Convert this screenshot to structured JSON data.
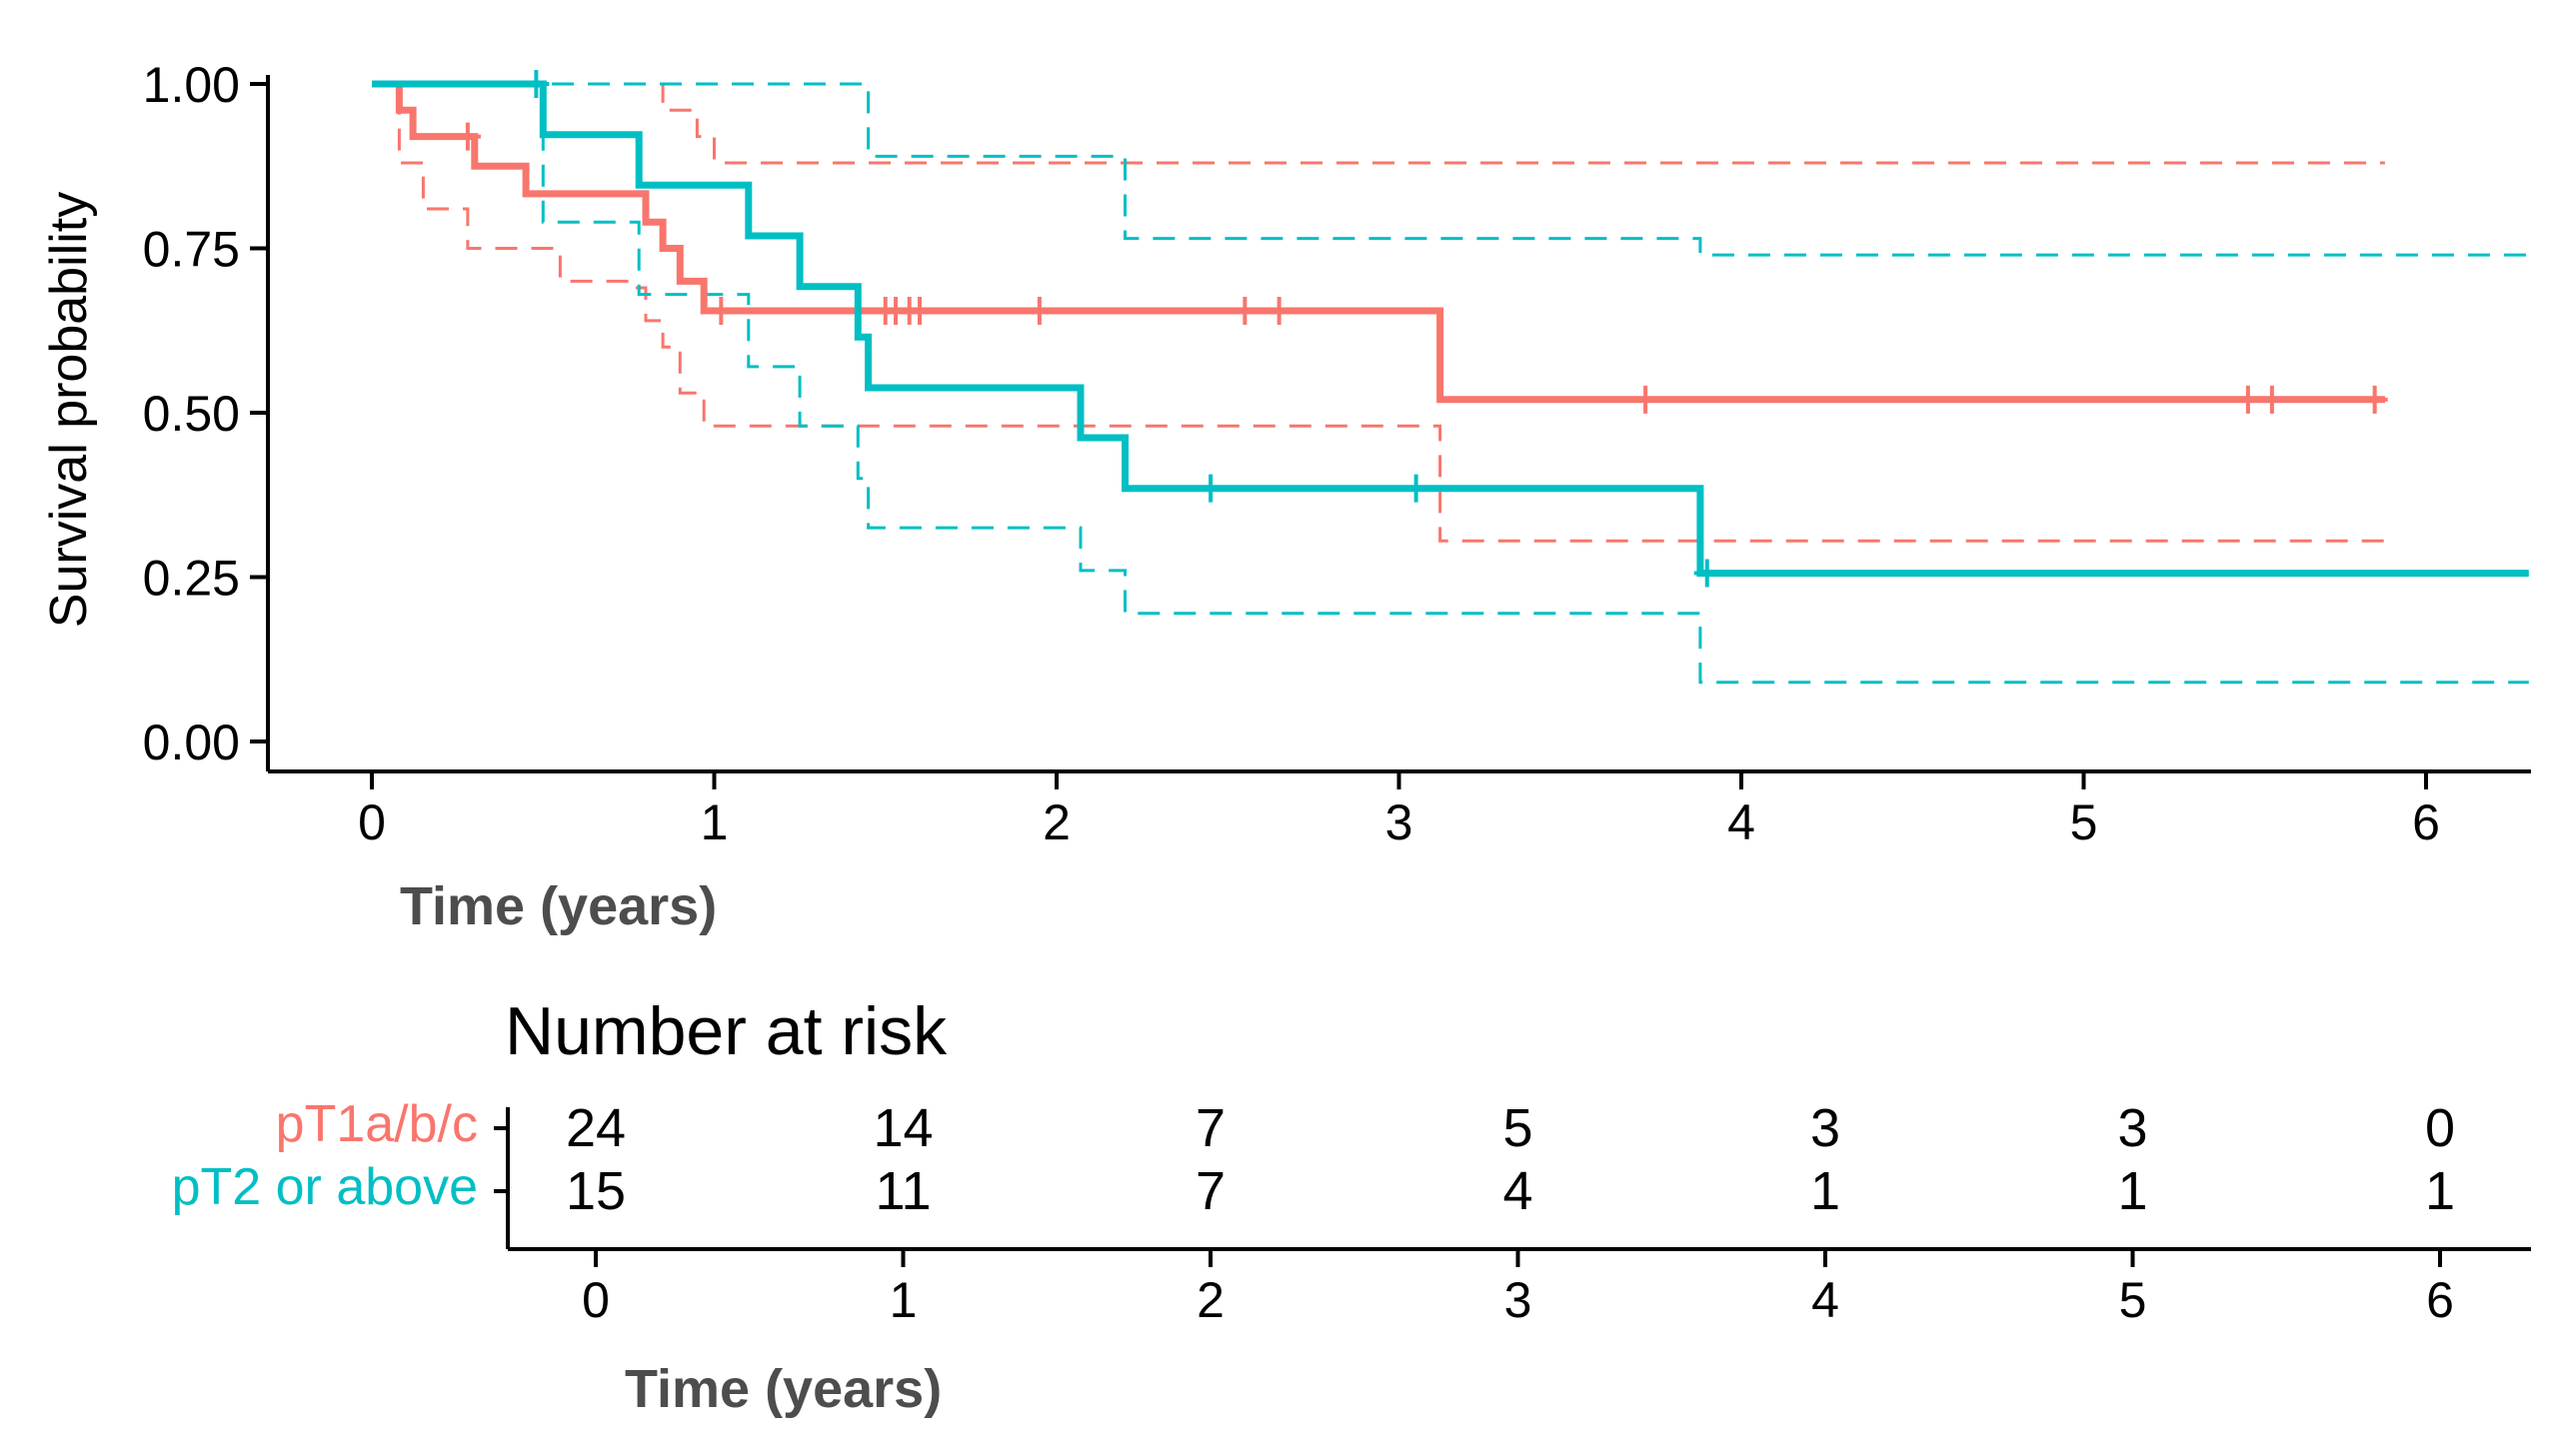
{
  "chart_data": {
    "type": "line",
    "subtype": "kaplan-meier",
    "ylabel": "Survival probability",
    "xlabel": "Time (years)",
    "xlim": [
      -0.3,
      6.3
    ],
    "ylim": [
      0,
      1
    ],
    "x_ticks": [
      0,
      1,
      2,
      3,
      4,
      5,
      6
    ],
    "x_tick_labels": [
      "0",
      "1",
      "2",
      "3",
      "4",
      "5",
      "6"
    ],
    "y_ticks": [
      0,
      0.25,
      0.5,
      0.75,
      1
    ],
    "y_tick_labels": [
      "0.00",
      "0.25",
      "0.50",
      "0.75",
      "1.00"
    ],
    "grid": false,
    "series": [
      {
        "name": "pT1a/b/c",
        "color": "#F8766D",
        "steps": [
          [
            0,
            1.0
          ],
          [
            0.08,
            0.96
          ],
          [
            0.12,
            0.92
          ],
          [
            0.3,
            0.875
          ],
          [
            0.45,
            0.833
          ],
          [
            0.8,
            0.79
          ],
          [
            0.85,
            0.75
          ],
          [
            0.9,
            0.7
          ],
          [
            0.97,
            0.655
          ],
          [
            3.12,
            0.52
          ],
          [
            5.88,
            0.52
          ]
        ],
        "censored": [
          [
            0.28,
            0.92
          ],
          [
            1.02,
            0.655
          ],
          [
            1.5,
            0.655
          ],
          [
            1.53,
            0.655
          ],
          [
            1.57,
            0.655
          ],
          [
            1.6,
            0.655
          ],
          [
            1.95,
            0.655
          ],
          [
            2.55,
            0.655
          ],
          [
            2.65,
            0.655
          ],
          [
            3.72,
            0.52
          ],
          [
            5.48,
            0.52
          ],
          [
            5.55,
            0.52
          ],
          [
            5.85,
            0.52
          ]
        ],
        "ci_lower": [
          [
            0,
            1.0
          ],
          [
            0.08,
            0.88
          ],
          [
            0.15,
            0.81
          ],
          [
            0.28,
            0.75
          ],
          [
            0.55,
            0.7
          ],
          [
            0.75,
            0.69
          ],
          [
            0.8,
            0.64
          ],
          [
            0.85,
            0.6
          ],
          [
            0.9,
            0.53
          ],
          [
            0.97,
            0.48
          ],
          [
            3.12,
            0.305
          ],
          [
            5.88,
            0.305
          ]
        ],
        "ci_upper": [
          [
            0,
            1.0
          ],
          [
            0.8,
            1.0
          ],
          [
            0.85,
            0.96
          ],
          [
            0.95,
            0.92
          ],
          [
            1.0,
            0.88
          ],
          [
            5.88,
            0.88
          ]
        ]
      },
      {
        "name": "pT2 or above",
        "color": "#00BFC4",
        "steps": [
          [
            0,
            1.0
          ],
          [
            0.5,
            0.923
          ],
          [
            0.78,
            0.846
          ],
          [
            1.1,
            0.769
          ],
          [
            1.25,
            0.692
          ],
          [
            1.42,
            0.615
          ],
          [
            1.45,
            0.538
          ],
          [
            2.07,
            0.462
          ],
          [
            2.2,
            0.385
          ],
          [
            3.88,
            0.256
          ],
          [
            6.3,
            0.256
          ]
        ],
        "censored": [
          [
            0.48,
            1.0
          ],
          [
            2.45,
            0.385
          ],
          [
            3.05,
            0.385
          ],
          [
            3.9,
            0.256
          ]
        ],
        "ci_lower": [
          [
            0,
            1.0
          ],
          [
            0.5,
            0.79
          ],
          [
            0.78,
            0.68
          ],
          [
            1.1,
            0.57
          ],
          [
            1.25,
            0.48
          ],
          [
            1.42,
            0.4
          ],
          [
            1.45,
            0.325
          ],
          [
            2.07,
            0.26
          ],
          [
            2.2,
            0.195
          ],
          [
            3.88,
            0.09
          ],
          [
            6.3,
            0.09
          ]
        ],
        "ci_upper": [
          [
            0,
            1.0
          ],
          [
            1.42,
            1.0
          ],
          [
            1.45,
            0.89
          ],
          [
            2.07,
            0.89
          ],
          [
            2.2,
            0.765
          ],
          [
            3.88,
            0.74
          ],
          [
            6.3,
            0.74
          ]
        ]
      }
    ],
    "risk_table": {
      "title": "Number at risk",
      "xlabel": "Time (years)",
      "times": [
        0,
        1,
        2,
        3,
        4,
        5,
        6
      ],
      "time_labels": [
        "0",
        "1",
        "2",
        "3",
        "4",
        "5",
        "6"
      ],
      "rows": [
        {
          "label": "pT1a/b/c",
          "color": "#F8766D",
          "values": [
            "24",
            "14",
            "7",
            "5",
            "3",
            "3",
            "0"
          ]
        },
        {
          "label": "pT2 or above",
          "color": "#00BFC4",
          "values": [
            "15",
            "11",
            "7",
            "4",
            "1",
            "1",
            "1"
          ]
        }
      ]
    }
  }
}
